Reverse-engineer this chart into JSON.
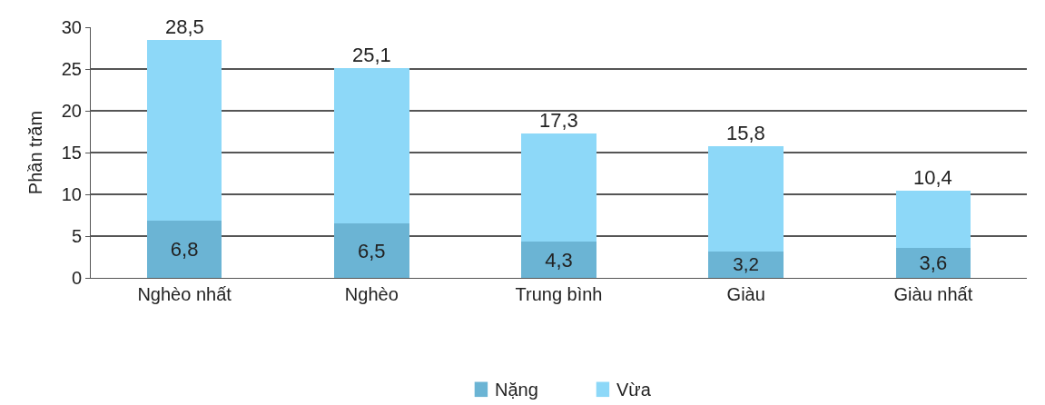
{
  "chart_data": {
    "type": "bar",
    "stacked": true,
    "ylabel": "Phần trăm",
    "categories": [
      "Nghèo nhất",
      "Nghèo",
      "Trung bình",
      "Giàu",
      "Giàu nhất"
    ],
    "series": [
      {
        "name": "Nặng",
        "color": "#6bb4d4",
        "values": [
          6.8,
          6.5,
          4.3,
          3.2,
          3.6
        ],
        "value_labels": [
          "6,8",
          "6,5",
          "4,3",
          "3,2",
          "3,6"
        ]
      },
      {
        "name": "Vừa",
        "color": "#8dd8f8",
        "values": [
          21.7,
          18.6,
          13.0,
          12.6,
          6.8
        ]
      }
    ],
    "totals": [
      "28,5",
      "25,1",
      "17,3",
      "15,8",
      "10,4"
    ],
    "ylim": [
      0,
      30
    ],
    "yticks": [
      0,
      5,
      10,
      15,
      20,
      25,
      30
    ],
    "grid": "y",
    "legend": "bottom"
  }
}
